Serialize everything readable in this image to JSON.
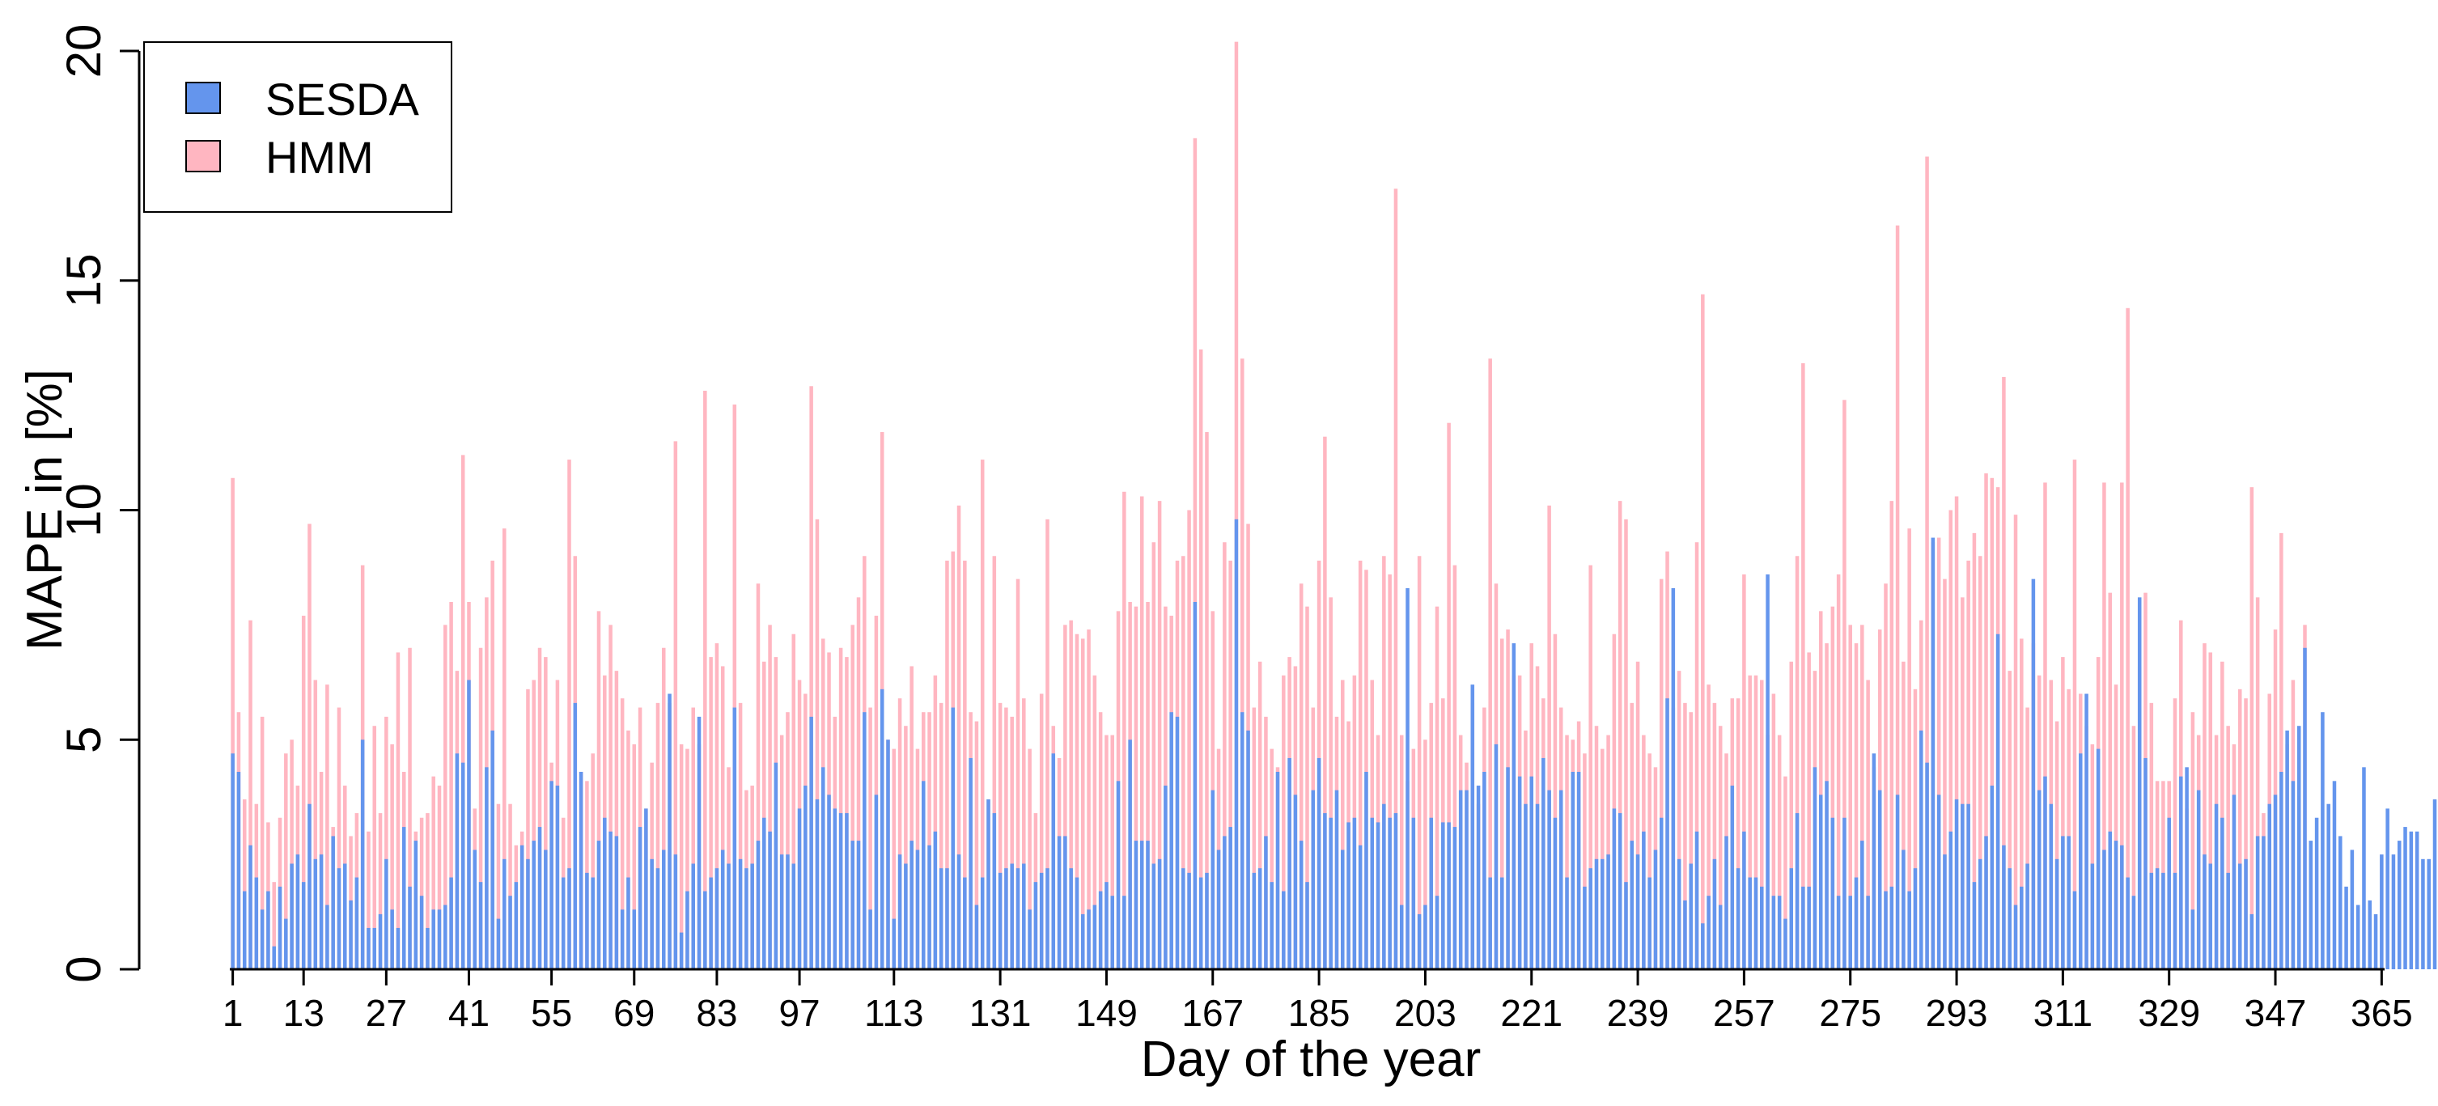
{
  "chart_data": {
    "type": "bar",
    "mode": "overlay",
    "xlabel": "Day of the year",
    "ylabel": "MAPE in [%]",
    "ylim": [
      0,
      20
    ],
    "yticks": [
      0,
      5,
      10,
      15,
      20
    ],
    "xticks": [
      1,
      13,
      27,
      41,
      55,
      69,
      83,
      97,
      113,
      131,
      149,
      167,
      185,
      203,
      221,
      239,
      257,
      275,
      293,
      311,
      329,
      347,
      365
    ],
    "x_range": [
      1,
      365
    ],
    "legend": {
      "position": "top-left",
      "entries": [
        {
          "label": "SESDA",
          "color": "#6495ED"
        },
        {
          "label": "HMM",
          "color": "#FFB6C1"
        }
      ]
    },
    "series": [
      {
        "name": "SESDA",
        "color": "#6495ED",
        "values": [
          4.7,
          4.3,
          1.7,
          2.7,
          2.0,
          1.3,
          1.7,
          0.5,
          1.8,
          1.1,
          2.3,
          2.5,
          1.9,
          3.6,
          2.4,
          2.5,
          1.4,
          2.9,
          2.2,
          2.3,
          1.5,
          2.0,
          5.0,
          0.9,
          0.9,
          1.2,
          2.4,
          1.3,
          0.9,
          3.1,
          1.8,
          2.8,
          1.6,
          0.9,
          1.3,
          1.3,
          1.4,
          2.0,
          4.7,
          4.5,
          6.3,
          2.6,
          1.9,
          4.4,
          5.2,
          1.1,
          2.4,
          1.6,
          1.9,
          2.7,
          2.4,
          2.8,
          3.1,
          2.6,
          4.1,
          4.0,
          2.0,
          2.2,
          5.8,
          4.3,
          2.1,
          2.0,
          2.8,
          3.3,
          3.0,
          2.9,
          1.3,
          2.0,
          1.3,
          3.1,
          3.5,
          2.4,
          2.2,
          2.6,
          6.0,
          2.5,
          0.8,
          1.7,
          2.3,
          5.5,
          1.7,
          2.0,
          2.2,
          2.6,
          2.3,
          5.7,
          2.4,
          2.2,
          2.3,
          2.8,
          3.3,
          3.0,
          4.5,
          2.5,
          2.5,
          2.3,
          3.5,
          4.0,
          5.5,
          3.7,
          4.4,
          3.8,
          3.5,
          3.4,
          3.4,
          2.8,
          2.8,
          5.6,
          1.3,
          3.8,
          6.1,
          5.0,
          1.1,
          2.5,
          2.3,
          2.8,
          2.6,
          4.1,
          2.7,
          3.0,
          2.2,
          2.2,
          5.7,
          2.5,
          2.0,
          4.6,
          1.4,
          2.0,
          3.7,
          3.4,
          2.1,
          2.2,
          2.3,
          2.2,
          2.3,
          1.3,
          1.9,
          2.1,
          2.2,
          4.7,
          2.9,
          2.9,
          2.2,
          2.0,
          1.2,
          1.3,
          1.4,
          1.7,
          1.9,
          1.6,
          4.1,
          1.6,
          5.0,
          2.8,
          2.8,
          2.8,
          2.3,
          2.4,
          4.0,
          5.6,
          5.5,
          2.2,
          2.1,
          8.0,
          2.0,
          2.1,
          3.9,
          2.6,
          2.9,
          3.1,
          9.8,
          5.6,
          5.2,
          2.1,
          2.2,
          2.9,
          1.9,
          4.3,
          1.7,
          4.6,
          3.8,
          2.8,
          1.9,
          3.9,
          4.6,
          3.4,
          3.3,
          3.9,
          2.6,
          3.2,
          3.3,
          2.7,
          4.3,
          3.3,
          3.2,
          3.6,
          3.3,
          3.4,
          1.4,
          8.3,
          3.3,
          1.2,
          1.4,
          3.3,
          1.6,
          3.2,
          3.2,
          3.1,
          3.9,
          3.9,
          6.2,
          4.0,
          4.3,
          2.0,
          4.9,
          2.0,
          4.4,
          7.1,
          4.2,
          3.6,
          4.2,
          3.6,
          4.6,
          3.9,
          3.3,
          3.9,
          2.0,
          4.3,
          4.3,
          1.8,
          2.2,
          2.4,
          2.4,
          2.5,
          3.5,
          3.4,
          1.9,
          2.8,
          2.5,
          3.0,
          2.0,
          2.6,
          3.3,
          5.9,
          8.3,
          2.4,
          1.5,
          2.3,
          3.0,
          1.0,
          1.6,
          2.4,
          1.4,
          2.9,
          4.0,
          2.2,
          3.0,
          2.0,
          2.0,
          1.8,
          8.6,
          1.6,
          1.6,
          1.1,
          2.2,
          3.4,
          1.8,
          1.8,
          4.4,
          3.8,
          4.1,
          3.3,
          1.6,
          3.3,
          1.6,
          2.0,
          2.8,
          1.6,
          4.7,
          3.9,
          1.7,
          1.8,
          3.8,
          2.6,
          1.7,
          2.2,
          5.2,
          4.5,
          9.4,
          3.8,
          2.5,
          3.0,
          3.7,
          3.6,
          3.6,
          1.9,
          2.4,
          2.9,
          4.0,
          7.3,
          2.7,
          2.2,
          1.4,
          1.8,
          2.3,
          8.5,
          3.9,
          4.2,
          3.6,
          2.4,
          2.9,
          2.9,
          1.7,
          4.7,
          6.0,
          2.3,
          4.8,
          2.6,
          3.0,
          2.8,
          2.7,
          2.0,
          1.6,
          8.1,
          4.6,
          2.1,
          2.2,
          2.1,
          3.3,
          2.1,
          4.2,
          4.4,
          1.3,
          3.9,
          2.5,
          2.3,
          3.6,
          3.3,
          2.1,
          3.8,
          2.3,
          2.4,
          1.2,
          2.9,
          2.9,
          3.6,
          3.8,
          4.3,
          5.2,
          4.1,
          5.3,
          7.0,
          2.8,
          3.3,
          5.6,
          3.6,
          4.1,
          2.9,
          1.8,
          2.6,
          1.4,
          4.4,
          1.5,
          1.2,
          2.5,
          3.5,
          2.5,
          2.8,
          3.1,
          3.0,
          3.0,
          2.4,
          2.4,
          3.7,
          3.9,
          2.9,
          2.2,
          2.3,
          2.2,
          3.1,
          2.8,
          1.4,
          4.8,
          6.6,
          2.3,
          1.9,
          4.8,
          4.0,
          1.9,
          4.0,
          2.7,
          4.4,
          2.5
        ]
      },
      {
        "name": "HMM",
        "color": "#FFB6C1",
        "values": [
          10.7,
          5.6,
          3.7,
          7.6,
          3.6,
          5.5,
          3.2,
          1.9,
          3.3,
          4.7,
          5.0,
          4.0,
          7.7,
          9.7,
          6.3,
          4.3,
          6.2,
          3.1,
          5.7,
          4.0,
          2.9,
          3.4,
          8.8,
          3.0,
          5.3,
          3.4,
          5.5,
          4.9,
          6.9,
          4.3,
          7.0,
          3.0,
          3.3,
          3.4,
          4.2,
          4.0,
          7.5,
          8.0,
          6.5,
          11.2,
          8.0,
          3.5,
          7.0,
          8.1,
          8.9,
          3.6,
          9.6,
          3.6,
          2.7,
          3.0,
          6.1,
          6.3,
          7.0,
          6.8,
          4.5,
          6.3,
          3.3,
          11.1,
          9.0,
          4.3,
          4.1,
          4.7,
          7.8,
          6.4,
          7.5,
          6.5,
          5.9,
          5.2,
          4.9,
          5.7,
          3.5,
          4.5,
          5.8,
          7.0,
          5.8,
          11.5,
          4.9,
          4.8,
          5.7,
          4.9,
          12.6,
          6.8,
          7.1,
          6.6,
          4.4,
          12.3,
          5.8,
          3.9,
          4.0,
          8.4,
          6.7,
          7.5,
          6.8,
          5.1,
          5.6,
          7.3,
          6.3,
          6.0,
          12.7,
          9.8,
          7.2,
          6.9,
          5.5,
          7.0,
          6.8,
          7.5,
          8.1,
          9.0,
          5.7,
          7.7,
          11.7,
          5.0,
          4.8,
          5.9,
          5.3,
          6.6,
          4.8,
          5.6,
          5.6,
          6.4,
          5.8,
          8.9,
          9.1,
          10.1,
          8.9,
          5.6,
          5.4,
          11.1,
          3.7,
          9.0,
          5.8,
          5.7,
          5.5,
          8.5,
          5.9,
          4.8,
          3.4,
          6.0,
          9.8,
          5.3,
          4.6,
          7.5,
          7.6,
          7.3,
          7.2,
          7.4,
          6.4,
          5.6,
          5.1,
          5.1,
          7.8,
          10.4,
          8.0,
          7.9,
          10.3,
          8.0,
          9.3,
          10.2,
          7.9,
          7.7,
          8.9,
          9.0,
          10.0,
          18.1,
          13.5,
          11.7,
          7.8,
          4.8,
          9.3,
          8.9,
          20.2,
          13.3,
          9.7,
          5.7,
          6.7,
          5.5,
          4.8,
          4.4,
          6.4,
          6.8,
          6.6,
          8.4,
          7.9,
          5.7,
          8.9,
          11.6,
          8.1,
          5.5,
          6.3,
          5.4,
          6.4,
          8.9,
          8.7,
          6.3,
          5.1,
          9.0,
          8.6,
          17.0,
          5.1,
          4.1,
          4.8,
          9.0,
          5.0,
          5.8,
          7.9,
          5.9,
          11.9,
          8.8,
          5.1,
          4.5,
          5.8,
          3.6,
          5.7,
          13.3,
          8.4,
          7.2,
          7.4,
          6.4,
          6.4,
          5.2,
          7.1,
          6.6,
          5.9,
          10.1,
          7.3,
          5.7,
          5.1,
          5.0,
          5.4,
          4.7,
          8.8,
          5.3,
          4.8,
          5.1,
          7.3,
          10.2,
          9.8,
          5.8,
          6.7,
          5.1,
          4.7,
          4.4,
          8.5,
          9.1,
          5.7,
          6.5,
          5.8,
          5.6,
          9.3,
          14.7,
          6.2,
          5.8,
          5.3,
          4.7,
          5.9,
          5.9,
          8.6,
          6.4,
          6.4,
          6.3,
          5.1,
          6.0,
          5.1,
          4.2,
          6.7,
          9.0,
          13.2,
          6.9,
          6.5,
          7.8,
          7.1,
          7.9,
          8.6,
          12.4,
          7.5,
          7.1,
          7.5,
          6.3,
          4.4,
          7.4,
          8.4,
          10.2,
          16.2,
          6.7,
          9.6,
          6.1,
          7.6,
          17.7,
          9.3,
          9.4,
          8.5,
          10.0,
          10.3,
          8.1,
          8.9,
          9.5,
          9.0,
          10.8,
          10.7,
          10.5,
          12.9,
          6.5,
          9.9,
          7.2,
          5.7,
          7.1,
          6.4,
          10.6,
          6.3,
          5.4,
          6.8,
          6.1,
          11.1,
          6.0,
          5.3,
          4.9,
          6.8,
          10.6,
          8.2,
          6.2,
          10.6,
          14.4,
          5.3,
          6.6,
          8.2,
          5.8,
          4.1,
          4.1,
          4.1,
          5.9,
          7.6,
          3.5,
          5.6,
          5.1,
          7.1,
          6.9,
          5.1,
          6.7,
          5.3,
          4.9,
          6.1,
          5.9,
          10.5,
          8.1,
          3.4,
          6.0,
          7.4,
          9.5,
          4.9,
          6.3,
          3.7,
          7.5
        ]
      }
    ]
  }
}
